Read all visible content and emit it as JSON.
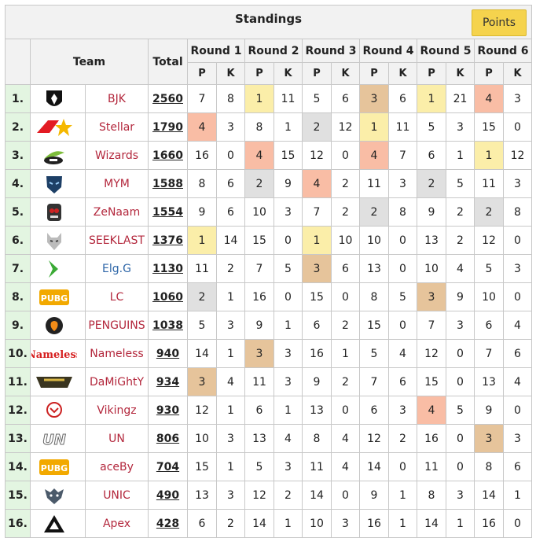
{
  "title": "Standings",
  "points_button": "Points",
  "headers": {
    "team": "Team",
    "total": "Total",
    "rounds": [
      "Round 1",
      "Round 2",
      "Round 3",
      "Round 4",
      "Round 5",
      "Round 6"
    ],
    "p": "P",
    "k": "K"
  },
  "rows": [
    {
      "rank": "1.",
      "team": "BJK",
      "total": "2560",
      "r": [
        [
          "7",
          "8"
        ],
        [
          "1",
          "11"
        ],
        [
          "5",
          "6"
        ],
        [
          "3",
          "6"
        ],
        [
          "1",
          "21"
        ],
        [
          "4",
          "3"
        ]
      ],
      "hl": [
        "",
        "gold",
        "",
        "bronze",
        "gold",
        "red"
      ],
      "logo": "bjk-eagle-logo"
    },
    {
      "rank": "2.",
      "team": "Stellar",
      "total": "1790",
      "r": [
        [
          "4",
          "3"
        ],
        [
          "8",
          "1"
        ],
        [
          "2",
          "12"
        ],
        [
          "1",
          "11"
        ],
        [
          "5",
          "3"
        ],
        [
          "15",
          "0"
        ]
      ],
      "hl": [
        "red",
        "",
        "silver",
        "gold",
        "",
        ""
      ],
      "logo": "stellar-star-logo"
    },
    {
      "rank": "3.",
      "team": "Wizards",
      "total": "1660",
      "r": [
        [
          "16",
          "0"
        ],
        [
          "4",
          "15"
        ],
        [
          "12",
          "0"
        ],
        [
          "4",
          "7"
        ],
        [
          "6",
          "1"
        ],
        [
          "1",
          "12"
        ]
      ],
      "hl": [
        "",
        "red",
        "",
        "red",
        "",
        "gold"
      ],
      "logo": "wizards-hat-logo"
    },
    {
      "rank": "4.",
      "team": "MYM",
      "total": "1588",
      "r": [
        [
          "8",
          "6"
        ],
        [
          "2",
          "9"
        ],
        [
          "4",
          "2"
        ],
        [
          "11",
          "3"
        ],
        [
          "2",
          "5"
        ],
        [
          "11",
          "3"
        ]
      ],
      "hl": [
        "",
        "silver",
        "red",
        "",
        "silver",
        ""
      ],
      "logo": "mym-mask-logo"
    },
    {
      "rank": "5.",
      "team": "ZeNaam",
      "total": "1554",
      "r": [
        [
          "9",
          "6"
        ],
        [
          "10",
          "3"
        ],
        [
          "7",
          "2"
        ],
        [
          "2",
          "8"
        ],
        [
          "9",
          "2"
        ],
        [
          "2",
          "8"
        ]
      ],
      "hl": [
        "",
        "",
        "",
        "silver",
        "",
        "silver"
      ],
      "logo": "zenaam-skull-logo"
    },
    {
      "rank": "6.",
      "team": "SEEKLAST",
      "total": "1376",
      "r": [
        [
          "1",
          "14"
        ],
        [
          "15",
          "0"
        ],
        [
          "1",
          "10"
        ],
        [
          "10",
          "0"
        ],
        [
          "13",
          "2"
        ],
        [
          "12",
          "0"
        ]
      ],
      "hl": [
        "gold",
        "",
        "gold",
        "",
        "",
        ""
      ],
      "logo": "seeklast-wolf-logo"
    },
    {
      "rank": "7.",
      "team": "Elg.G",
      "total": "1130",
      "r": [
        [
          "11",
          "2"
        ],
        [
          "7",
          "5"
        ],
        [
          "3",
          "6"
        ],
        [
          "13",
          "0"
        ],
        [
          "10",
          "4"
        ],
        [
          "5",
          "3"
        ]
      ],
      "hl": [
        "",
        "",
        "bronze",
        "",
        "",
        ""
      ],
      "logo": "elgg-arrow-logo"
    },
    {
      "rank": "8.",
      "team": "LC",
      "total": "1060",
      "r": [
        [
          "2",
          "1"
        ],
        [
          "16",
          "0"
        ],
        [
          "15",
          "0"
        ],
        [
          "8",
          "5"
        ],
        [
          "3",
          "9"
        ],
        [
          "10",
          "0"
        ]
      ],
      "hl": [
        "silver",
        "",
        "",
        "",
        "bronze",
        ""
      ],
      "logo": "pubg-logo"
    },
    {
      "rank": "9.",
      "team": "PENGUINS",
      "total": "1038",
      "r": [
        [
          "5",
          "3"
        ],
        [
          "9",
          "1"
        ],
        [
          "6",
          "2"
        ],
        [
          "15",
          "0"
        ],
        [
          "7",
          "3"
        ],
        [
          "6",
          "4"
        ]
      ],
      "hl": [
        "",
        "",
        "",
        "",
        "",
        ""
      ],
      "logo": "penguins-logo"
    },
    {
      "rank": "10.",
      "team": "Nameless",
      "total": "940",
      "r": [
        [
          "14",
          "1"
        ],
        [
          "3",
          "3"
        ],
        [
          "16",
          "1"
        ],
        [
          "5",
          "4"
        ],
        [
          "12",
          "0"
        ],
        [
          "7",
          "6"
        ]
      ],
      "hl": [
        "",
        "bronze",
        "",
        "",
        "",
        ""
      ],
      "logo": "nameless-wordmark-logo"
    },
    {
      "rank": "11.",
      "team": "DaMiGhtY",
      "total": "934",
      "r": [
        [
          "3",
          "4"
        ],
        [
          "11",
          "3"
        ],
        [
          "9",
          "2"
        ],
        [
          "7",
          "6"
        ],
        [
          "15",
          "0"
        ],
        [
          "13",
          "4"
        ]
      ],
      "hl": [
        "bronze",
        "",
        "",
        "",
        "",
        ""
      ],
      "logo": "damighty-logo"
    },
    {
      "rank": "12.",
      "team": "Vikingz",
      "total": "930",
      "r": [
        [
          "12",
          "1"
        ],
        [
          "6",
          "1"
        ],
        [
          "13",
          "0"
        ],
        [
          "6",
          "3"
        ],
        [
          "4",
          "5"
        ],
        [
          "9",
          "0"
        ]
      ],
      "hl": [
        "",
        "",
        "",
        "",
        "red",
        ""
      ],
      "logo": "vikingz-logo"
    },
    {
      "rank": "13.",
      "team": "UN",
      "total": "806",
      "r": [
        [
          "10",
          "3"
        ],
        [
          "13",
          "4"
        ],
        [
          "8",
          "4"
        ],
        [
          "12",
          "2"
        ],
        [
          "16",
          "0"
        ],
        [
          "3",
          "3"
        ]
      ],
      "hl": [
        "",
        "",
        "",
        "",
        "",
        "bronze"
      ],
      "logo": "un-wordmark-logo"
    },
    {
      "rank": "14.",
      "team": "aceBy",
      "total": "704",
      "r": [
        [
          "15",
          "1"
        ],
        [
          "5",
          "3"
        ],
        [
          "11",
          "4"
        ],
        [
          "14",
          "0"
        ],
        [
          "11",
          "0"
        ],
        [
          "8",
          "6"
        ]
      ],
      "hl": [
        "",
        "",
        "",
        "",
        "",
        ""
      ],
      "logo": "pubg-logo"
    },
    {
      "rank": "15.",
      "team": "UNIC",
      "total": "490",
      "r": [
        [
          "13",
          "3"
        ],
        [
          "12",
          "2"
        ],
        [
          "14",
          "0"
        ],
        [
          "9",
          "1"
        ],
        [
          "8",
          "3"
        ],
        [
          "14",
          "1"
        ]
      ],
      "hl": [
        "",
        "",
        "",
        "",
        "",
        ""
      ],
      "logo": "unic-wolf-logo"
    },
    {
      "rank": "16.",
      "team": "Apex",
      "total": "428",
      "r": [
        [
          "6",
          "2"
        ],
        [
          "14",
          "1"
        ],
        [
          "10",
          "3"
        ],
        [
          "16",
          "1"
        ],
        [
          "14",
          "1"
        ],
        [
          "16",
          "0"
        ]
      ],
      "hl": [
        "",
        "",
        "",
        "",
        "",
        ""
      ],
      "logo": "apex-triangle-logo"
    }
  ],
  "colors": {
    "gold": "#fbeea9",
    "silver": "#e0e0e0",
    "bronze": "#e6c49b",
    "red": "#f9bda5",
    "rank_bg": "#e3f5e1",
    "team_link": "#b3273c",
    "team_link_alt": "#2f67a8",
    "button": "#f5d34d"
  }
}
